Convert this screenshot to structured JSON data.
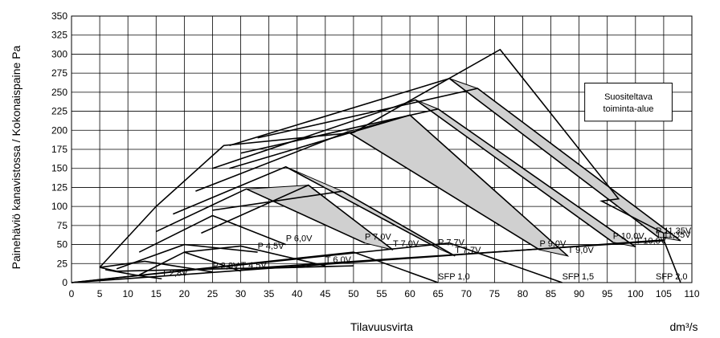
{
  "chart_data": {
    "type": "line",
    "xlabel": "Tilavuusvirta",
    "xunit": "dm³/s",
    "ylabel": "Painehäviö kanavistossa / Kokonaispaine Pa",
    "xlim": [
      0,
      110
    ],
    "ylim": [
      0,
      350
    ],
    "xticks": [
      "0",
      "5",
      "10",
      "15",
      "20",
      "25",
      "30",
      "35",
      "40",
      "45",
      "50",
      "55",
      "60",
      "65",
      "70",
      "75",
      "80",
      "85",
      "90",
      "95",
      "100",
      "105",
      "110"
    ],
    "yticks": [
      "0",
      "25",
      "50",
      "75",
      "100",
      "125",
      "150",
      "175",
      "200",
      "225",
      "250",
      "275",
      "300",
      "325",
      "350"
    ],
    "grid": true,
    "recommended_area_label": [
      "Suositeltava",
      "toiminta-alue"
    ],
    "envelope": [
      [
        5,
        20
      ],
      [
        15,
        100
      ],
      [
        27,
        180
      ],
      [
        50,
        197
      ],
      [
        76,
        306
      ],
      [
        97,
        110
      ],
      [
        94,
        107
      ],
      [
        105,
        65
      ],
      [
        105,
        55
      ]
    ],
    "envelope_closing": [
      [
        30,
        18
      ],
      [
        50,
        22
      ],
      [
        8,
        15
      ],
      [
        5,
        20
      ]
    ],
    "series": [
      {
        "name": "P 2,8V",
        "points": [
          [
            5,
            20
          ],
          [
            13,
            28
          ],
          [
            25,
            14
          ]
        ]
      },
      {
        "name": "T 2,8V",
        "points": [
          [
            6,
            17
          ],
          [
            12,
            9
          ],
          [
            16,
            5
          ]
        ]
      },
      {
        "name": "P 4,5V",
        "points": [
          [
            8,
            18
          ],
          [
            20,
            50
          ],
          [
            33,
            40
          ]
        ]
      },
      {
        "name": "T 4,5V",
        "points": [
          [
            12,
            10
          ],
          [
            20,
            40
          ],
          [
            30,
            15
          ]
        ]
      },
      {
        "name": "P 6,0V",
        "points": [
          [
            12,
            40
          ],
          [
            25,
            88
          ],
          [
            38,
            50
          ]
        ]
      },
      {
        "name": "T 6,0V",
        "points": [
          [
            20,
            40
          ],
          [
            30,
            48
          ],
          [
            45,
            22
          ]
        ]
      },
      {
        "name": "P 7,0V",
        "points": [
          [
            15,
            67
          ],
          [
            31,
            123
          ],
          [
            52,
            52
          ]
        ]
      },
      {
        "name": "T 7,0V",
        "points": [
          [
            23,
            65
          ],
          [
            42,
            128
          ],
          [
            57,
            43
          ]
        ]
      },
      {
        "name": "P 7,7V",
        "points": [
          [
            18,
            90
          ],
          [
            38,
            152
          ],
          [
            65,
            45
          ]
        ]
      },
      {
        "name": "T 7,7V",
        "points": [
          [
            25,
            95
          ],
          [
            48,
            120
          ],
          [
            68,
            35
          ]
        ]
      },
      {
        "name": "P 9,0V",
        "points": [
          [
            22,
            120
          ],
          [
            49,
            198
          ],
          [
            83,
            43
          ]
        ]
      },
      {
        "name": "T 9,0V",
        "points": [
          [
            28,
            150
          ],
          [
            60,
            220
          ],
          [
            88,
            35
          ]
        ]
      },
      {
        "name": "P 10,0V",
        "points": [
          [
            25,
            150
          ],
          [
            61,
            240
          ],
          [
            96,
            53
          ]
        ]
      },
      {
        "name": "T 10,0V",
        "points": [
          [
            30,
            170
          ],
          [
            65,
            228
          ],
          [
            100,
            47
          ]
        ]
      },
      {
        "name": "P 11,35V",
        "points": [
          [
            28,
            180
          ],
          [
            67,
            268
          ],
          [
            104,
            60
          ]
        ]
      },
      {
        "name": "T 11,35V",
        "points": [
          [
            33,
            190
          ],
          [
            72,
            255
          ],
          [
            108,
            55
          ]
        ]
      },
      {
        "name": "SFP 1,0",
        "points": [
          [
            0,
            0
          ],
          [
            50,
            40
          ],
          [
            65,
            0
          ]
        ]
      },
      {
        "name": "SFP 1,5",
        "points": [
          [
            0,
            0
          ],
          [
            67,
            52
          ],
          [
            87,
            0
          ]
        ]
      },
      {
        "name": "SFP 2,0",
        "points": [
          [
            0,
            0
          ],
          [
            105,
            56
          ],
          [
            108,
            0
          ]
        ]
      }
    ]
  }
}
